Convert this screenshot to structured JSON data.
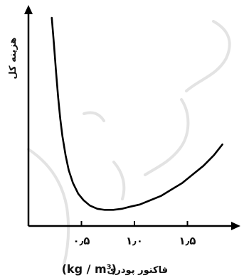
{
  "chart_data": {
    "type": "line",
    "title": "",
    "ylabel": "هزینه کل",
    "xlabel_text": "فاکتور پودری",
    "xlabel_unit": "(kg / m³)",
    "xlim": [
      0,
      2.0
    ],
    "ylim": [
      0,
      1.0
    ],
    "grid": false,
    "legend": "none",
    "x_tick_labels": [
      {
        "value": 0.5,
        "label": "٠٫۵"
      },
      {
        "value": 1.0,
        "label": "١٫٠"
      },
      {
        "value": 1.5,
        "label": "١٫۵"
      }
    ],
    "series": [
      {
        "x": [
          0.22,
          0.24,
          0.26,
          0.28,
          0.3,
          0.32,
          0.35,
          0.38,
          0.42,
          0.47,
          0.52,
          0.58,
          0.65,
          0.72,
          0.8,
          0.88,
          0.96,
          1.05,
          1.15,
          1.25,
          1.35,
          1.45,
          1.55,
          1.65,
          1.75,
          1.83
        ],
        "y": [
          0.97,
          0.85,
          0.72,
          0.6,
          0.5,
          0.42,
          0.33,
          0.26,
          0.2,
          0.15,
          0.12,
          0.095,
          0.08,
          0.075,
          0.075,
          0.08,
          0.09,
          0.1,
          0.12,
          0.14,
          0.17,
          0.2,
          0.24,
          0.28,
          0.33,
          0.38
        ]
      }
    ],
    "line_color": "#000000",
    "axis_color": "#000000"
  }
}
